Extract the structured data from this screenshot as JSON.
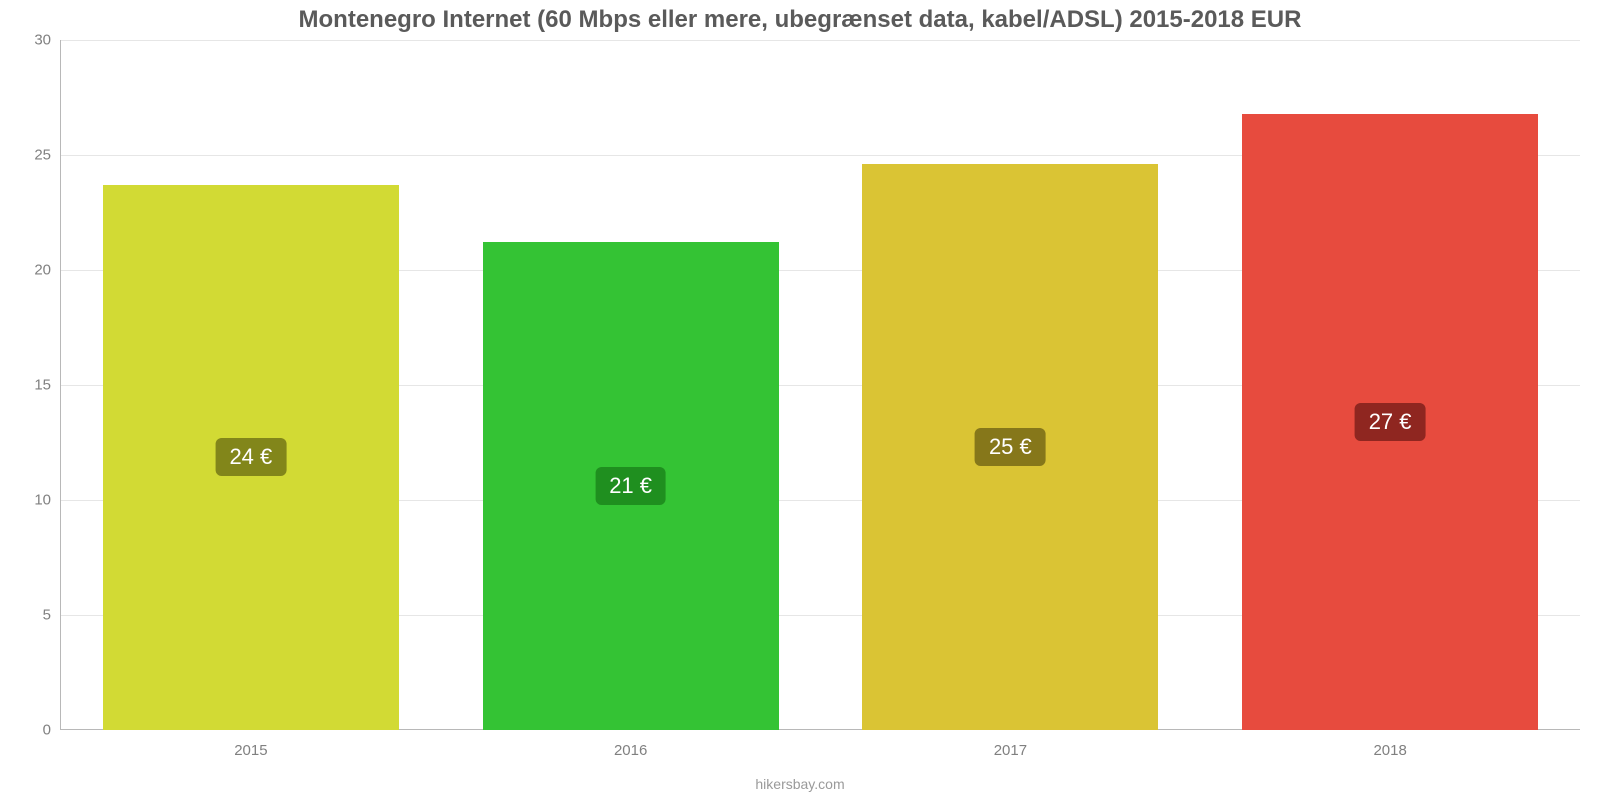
{
  "chart": {
    "type": "bar",
    "title": "Montenegro Internet (60 Mbps eller mere, ubegrænset data, kabel/ADSL) 2015-2018 EUR",
    "title_fontsize": 24,
    "title_color": "#5a5a5a",
    "source": "hikersbay.com",
    "background_color": "#ffffff",
    "grid_color": "#e6e6e6",
    "axis_color": "#b8b8b8",
    "tick_label_color": "#808080",
    "tick_label_fontsize": 15,
    "ylim": [
      0,
      30
    ],
    "ytick_step": 5,
    "yticks": [
      0,
      5,
      10,
      15,
      20,
      25,
      30
    ],
    "categories": [
      "2015",
      "2016",
      "2017",
      "2018"
    ],
    "values": [
      23.7,
      21.2,
      24.6,
      26.8
    ],
    "value_labels": [
      "24 €",
      "21 €",
      "25 €",
      "27 €"
    ],
    "bar_colors": [
      "#d2da34",
      "#34c334",
      "#dac434",
      "#e74b3e"
    ],
    "label_bg_colors": [
      "#82861a",
      "#1f8f1f",
      "#86771a",
      "#8f2620"
    ],
    "label_text_color": "#ffffff",
    "label_fontsize": 22,
    "bar_width_ratio": 0.78
  }
}
